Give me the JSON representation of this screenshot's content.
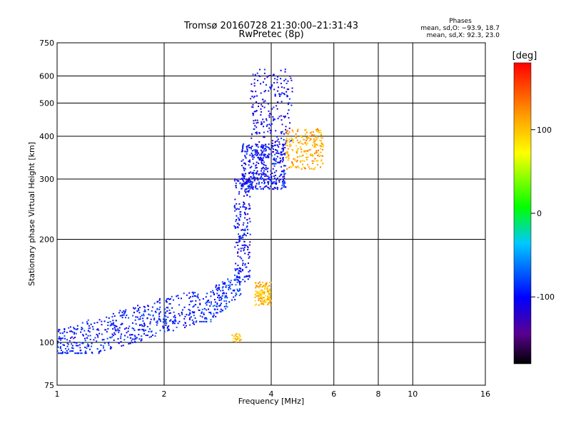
{
  "chart_data": {
    "type": "scatter",
    "title": "Tromsø 20160728 21:30:00–21:31:43",
    "subtitle": "RwPretec (8p)",
    "xlabel": "Frequency [MHz]",
    "ylabel": "Stationary phase Virtual Height [km]",
    "x_scale": "log",
    "y_scale": "log",
    "xlim": [
      1,
      16
    ],
    "ylim": [
      75,
      750
    ],
    "x_ticks": [
      1,
      2,
      4,
      6,
      8,
      10,
      16
    ],
    "y_ticks": [
      75,
      100,
      200,
      300,
      400,
      500,
      600,
      750
    ],
    "grid": true,
    "stats": {
      "heading": "Phases",
      "line_o": "mean, sd,O: −93.9, 18.7",
      "line_x": "mean, sd,X:  92.3, 23.0"
    },
    "colorbar": {
      "label": "[deg]",
      "min": -180,
      "max": 180,
      "ticks": [
        100,
        0,
        -100
      ]
    },
    "clusters": [
      {
        "region": "E",
        "xmin": 1.0,
        "xmax": 2.5,
        "ymin": 93,
        "ymax": 140,
        "phase_mean": -95,
        "count": 520
      },
      {
        "region": "E-ramp",
        "xmin": 2.5,
        "xmax": 3.3,
        "ymin": 115,
        "ymax": 165,
        "phase_mean": -90,
        "count": 180
      },
      {
        "region": "F-trace",
        "xmin": 3.15,
        "xmax": 3.5,
        "ymin": 150,
        "ymax": 300,
        "phase_mean": -100,
        "count": 200
      },
      {
        "region": "F1",
        "xmin": 3.3,
        "xmax": 4.4,
        "ymin": 280,
        "ymax": 380,
        "phase_mean": -100,
        "count": 420
      },
      {
        "region": "F2",
        "xmin": 3.5,
        "xmax": 4.6,
        "ymin": 380,
        "ymax": 630,
        "phase_mean": -105,
        "count": 200
      },
      {
        "region": "X-E",
        "xmin": 3.6,
        "xmax": 4.0,
        "ymin": 128,
        "ymax": 150,
        "phase_mean": 105,
        "count": 130
      },
      {
        "region": "X-F",
        "xmin": 4.4,
        "xmax": 5.6,
        "ymin": 320,
        "ymax": 420,
        "phase_mean": 110,
        "count": 220
      },
      {
        "region": "X-low",
        "xmin": 3.1,
        "xmax": 3.3,
        "ymin": 100,
        "ymax": 106,
        "phase_mean": 100,
        "count": 25
      }
    ]
  }
}
